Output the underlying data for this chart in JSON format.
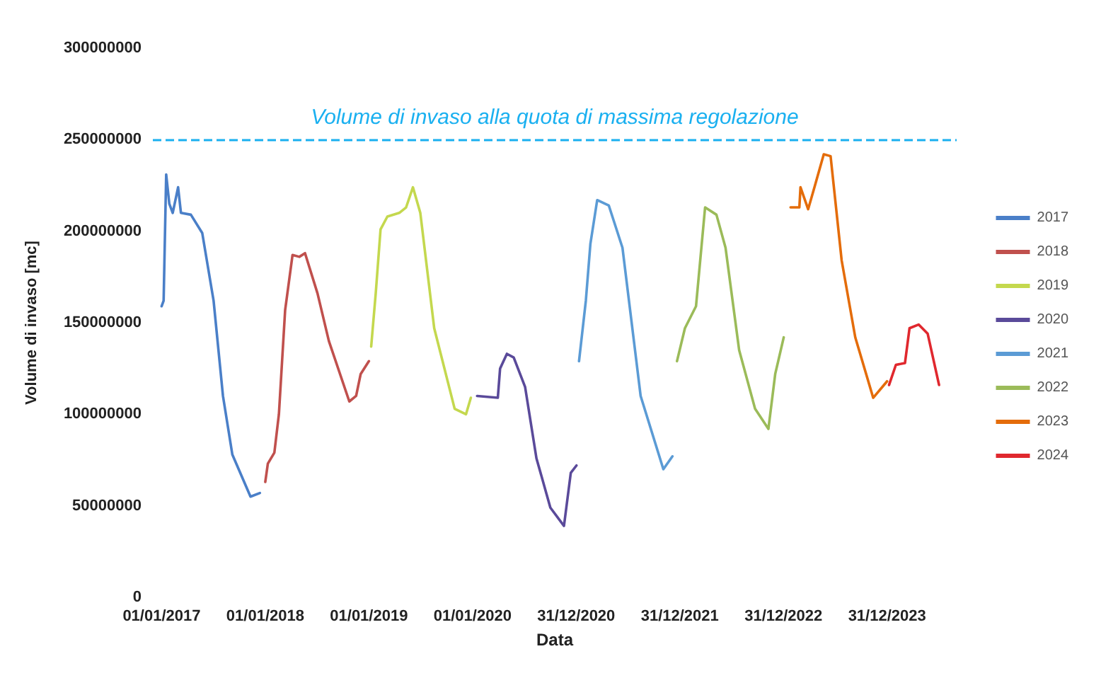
{
  "chart_data": {
    "type": "line",
    "xlabel": "Data",
    "ylabel": "Volume di invaso [mc]",
    "xlim": [
      "2016-12-01",
      "2024-09-01"
    ],
    "xticks": [
      {
        "value": "2017-01-01",
        "label": "01/01/2017"
      },
      {
        "value": "2018-01-01",
        "label": "01/01/2018"
      },
      {
        "value": "2019-01-01",
        "label": "01/01/2019"
      },
      {
        "value": "2020-01-01",
        "label": "01/01/2020"
      },
      {
        "value": "2020-12-31",
        "label": "31/12/2020"
      },
      {
        "value": "2021-12-31",
        "label": "31/12/2021"
      },
      {
        "value": "2022-12-31",
        "label": "31/12/2022"
      },
      {
        "value": "2023-12-31",
        "label": "31/12/2023"
      }
    ],
    "ylim": [
      0,
      300000000
    ],
    "yticks": [
      0,
      50000000,
      100000000,
      150000000,
      200000000,
      250000000,
      300000000
    ],
    "grid": false,
    "legend": "right",
    "marker": "none",
    "line_style": "solid",
    "ref_lines": [
      {
        "axis": "y",
        "value": 250000000,
        "label": "Volume di invaso alla quota di massima regolazione",
        "color": "#1ab0f0",
        "line_style": "dashed"
      }
    ],
    "series": [
      {
        "name": "2017",
        "color": "#4a7fc8",
        "x": [
          "2017-01-01",
          "2017-01-08",
          "2017-01-17",
          "2017-01-28",
          "2017-02-09",
          "2017-02-28",
          "2017-03-10",
          "2017-04-14",
          "2017-05-24",
          "2017-07-03",
          "2017-08-05",
          "2017-09-07",
          "2017-11-10",
          "2017-12-13"
        ],
        "values": [
          159000000,
          162000000,
          231000000,
          215000000,
          210000000,
          224000000,
          210000000,
          209000000,
          199000000,
          162000000,
          110000000,
          78000000,
          55000000,
          57000000
        ]
      },
      {
        "name": "2018",
        "color": "#c0504d",
        "x": [
          "2018-01-01",
          "2018-01-10",
          "2018-02-02",
          "2018-02-18",
          "2018-03-12",
          "2018-04-07",
          "2018-05-01",
          "2018-05-21",
          "2018-07-04",
          "2018-08-13",
          "2018-10-24",
          "2018-11-17",
          "2018-12-03",
          "2019-01-01"
        ],
        "values": [
          63000000,
          73000000,
          79000000,
          100000000,
          157000000,
          187000000,
          186000000,
          188000000,
          166000000,
          140000000,
          107000000,
          110000000,
          122000000,
          129000000
        ]
      },
      {
        "name": "2019",
        "color": "#c4d84e",
        "x": [
          "2019-01-09",
          "2019-01-25",
          "2019-02-11",
          "2019-03-07",
          "2019-04-18",
          "2019-05-12",
          "2019-06-05",
          "2019-07-01",
          "2019-08-19",
          "2019-10-30",
          "2019-12-09",
          "2019-12-26"
        ],
        "values": [
          137000000,
          166000000,
          201000000,
          208000000,
          210000000,
          213000000,
          224000000,
          210000000,
          147000000,
          103000000,
          100000000,
          109000000
        ]
      },
      {
        "name": "2020",
        "color": "#5a4a9a",
        "x": [
          "2020-01-17",
          "2020-03-30",
          "2020-04-07",
          "2020-05-01",
          "2020-05-25",
          "2020-07-04",
          "2020-08-13",
          "2020-10-01",
          "2020-11-18",
          "2020-12-12",
          "2021-01-01"
        ],
        "values": [
          110000000,
          109000000,
          125000000,
          133000000,
          131000000,
          115000000,
          76000000,
          49000000,
          39000000,
          68000000,
          72000000
        ]
      },
      {
        "name": "2021",
        "color": "#5b9bd5",
        "x": [
          "2021-01-10",
          "2021-02-03",
          "2021-02-19",
          "2021-03-15",
          "2021-04-25",
          "2021-06-12",
          "2021-08-15",
          "2021-11-03",
          "2021-12-05"
        ],
        "values": [
          129000000,
          162000000,
          193000000,
          217000000,
          214000000,
          191000000,
          110000000,
          70000000,
          77000000
        ]
      },
      {
        "name": "2022",
        "color": "#9bbb59",
        "x": [
          "2021-12-21",
          "2022-01-18",
          "2022-02-26",
          "2022-03-30",
          "2022-05-09",
          "2022-06-10",
          "2022-07-28",
          "2022-09-22",
          "2022-11-08",
          "2022-12-02",
          "2023-01-01"
        ],
        "values": [
          129000000,
          147000000,
          159000000,
          213000000,
          209000000,
          191000000,
          135000000,
          103000000,
          92000000,
          122000000,
          142000000
        ]
      },
      {
        "name": "2023",
        "color": "#e46c0a",
        "x": [
          "2023-01-25",
          "2023-02-25",
          "2023-03-01",
          "2023-03-28",
          "2023-04-21",
          "2023-05-22",
          "2023-06-15",
          "2023-07-24",
          "2023-09-10",
          "2023-11-12",
          "2023-12-31"
        ],
        "values": [
          213000000,
          213000000,
          224000000,
          212000000,
          225000000,
          242000000,
          241000000,
          184000000,
          142000000,
          109000000,
          118000000
        ]
      },
      {
        "name": "2024",
        "color": "#e0282e",
        "x": [
          "2024-01-07",
          "2024-01-31",
          "2024-03-03",
          "2024-03-19",
          "2024-04-20",
          "2024-05-22",
          "2024-07-01"
        ],
        "values": [
          116000000,
          127000000,
          128000000,
          147000000,
          149000000,
          144000000,
          116000000
        ]
      }
    ]
  }
}
